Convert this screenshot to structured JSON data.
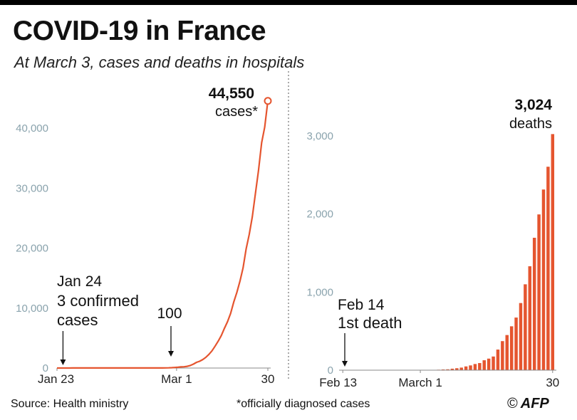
{
  "header": {
    "title": "COVID-19 in France",
    "subtitle": "At March 3, cases and deaths in hospitals"
  },
  "footer": {
    "source": "Source: Health ministry",
    "note": "*officially diagnosed cases",
    "credit_symbol": "©",
    "credit": "AFP"
  },
  "colors": {
    "accent": "#e5552f",
    "axis_label": "#8aa3ad",
    "text": "#222222"
  },
  "chart_data": [
    {
      "type": "line",
      "series": [
        {
          "values": [
            3,
            3,
            3,
            4,
            5,
            6,
            6,
            6,
            6,
            12,
            12,
            12,
            12,
            12,
            12,
            12,
            12,
            12,
            12,
            12,
            12,
            12,
            12,
            12,
            12,
            12,
            12,
            12,
            12,
            12,
            12,
            12,
            12,
            12,
            14,
            18,
            38,
            57,
            100,
            130,
            191,
            212,
            285,
            423,
            653,
            949,
            1126,
            1412,
            1784,
            2281,
            2876,
            3661,
            4499,
            5423,
            6633,
            7730,
            9134,
            10995,
            12612,
            14459,
            16689,
            19856,
            22302,
            25233,
            29155,
            32964,
            37575,
            40174,
            44550
          ]
        }
      ],
      "x_start": "2020-01-23",
      "x_end": "2020-03-30",
      "ylim": [
        0,
        45000
      ],
      "yticks": [
        "0",
        "10,000",
        "20,000",
        "30,000",
        "40,000"
      ],
      "ytick_values": [
        0,
        10000,
        20000,
        30000,
        40000
      ],
      "xticks": [
        "Jan 23",
        "Mar 1",
        "30"
      ],
      "xtick_dates": [
        "2020-01-23",
        "2020-03-01",
        "2020-03-30"
      ],
      "annotations": [
        {
          "date": "2020-01-24",
          "lines": [
            "Jan 24",
            "3 confirmed",
            "cases"
          ]
        },
        {
          "date": "2020-03-01",
          "lines": [
            "100"
          ]
        }
      ],
      "end_label": {
        "value": "44,550",
        "unit": "cases*"
      }
    },
    {
      "type": "bar",
      "categories": [
        "2020-02-13",
        "2020-02-14",
        "2020-02-15",
        "2020-02-16",
        "2020-02-17",
        "2020-02-18",
        "2020-02-19",
        "2020-02-20",
        "2020-02-21",
        "2020-02-22",
        "2020-02-23",
        "2020-02-24",
        "2020-02-25",
        "2020-02-26",
        "2020-02-27",
        "2020-02-28",
        "2020-02-29",
        "2020-03-01",
        "2020-03-02",
        "2020-03-03",
        "2020-03-04",
        "2020-03-05",
        "2020-03-06",
        "2020-03-07",
        "2020-03-08",
        "2020-03-09",
        "2020-03-10",
        "2020-03-11",
        "2020-03-12",
        "2020-03-13",
        "2020-03-14",
        "2020-03-15",
        "2020-03-16",
        "2020-03-17",
        "2020-03-18",
        "2020-03-19",
        "2020-03-20",
        "2020-03-21",
        "2020-03-22",
        "2020-03-23",
        "2020-03-24",
        "2020-03-25",
        "2020-03-26",
        "2020-03-27",
        "2020-03-28",
        "2020-03-29",
        "2020-03-30"
      ],
      "values": [
        0,
        1,
        1,
        1,
        1,
        1,
        1,
        1,
        1,
        1,
        1,
        1,
        1,
        2,
        2,
        2,
        2,
        2,
        3,
        4,
        4,
        6,
        9,
        11,
        19,
        25,
        33,
        48,
        61,
        79,
        91,
        127,
        148,
        175,
        264,
        372,
        450,
        562,
        674,
        860,
        1100,
        1331,
        1696,
        1995,
        2314,
        2606,
        3024
      ],
      "ylim": [
        0,
        3200
      ],
      "yticks": [
        "0",
        "1,000",
        "2,000",
        "3,000"
      ],
      "ytick_values": [
        0,
        1000,
        2000,
        3000
      ],
      "xticks": [
        "Feb 13",
        "March 1",
        "30"
      ],
      "xtick_dates": [
        "2020-02-13",
        "2020-03-01",
        "2020-03-30"
      ],
      "annotations": [
        {
          "date": "2020-02-14",
          "lines": [
            "Feb 14",
            "1st death"
          ]
        }
      ],
      "end_label": {
        "value": "3,024",
        "unit": "deaths"
      }
    }
  ]
}
